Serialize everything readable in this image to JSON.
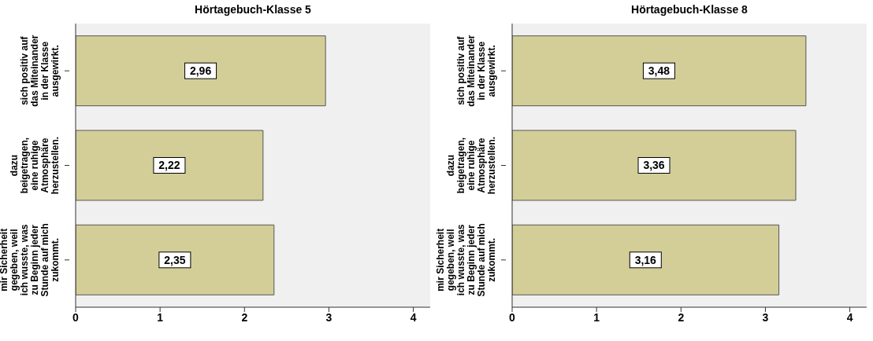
{
  "chart_data": [
    {
      "type": "bar",
      "orientation": "horizontal",
      "title": "Hörtagebuch-Klasse 5",
      "categories": [
        "sich positiv auf das Miteinander in der Klasse ausgewirkt.",
        "dazu beigetragen, eine ruhige Atmosphäre herzustellen.",
        "mir Sicherheit gegeben, weil ich wusste, was zu Beginn jeder Stunde auf mich zukommt."
      ],
      "values": [
        2.96,
        2.22,
        2.35
      ],
      "value_labels": [
        "2,96",
        "2,22",
        "2,35"
      ],
      "color": "#d3ce98",
      "xlim": [
        0,
        4.2
      ],
      "xticks": [
        0,
        1,
        2,
        3,
        4
      ]
    },
    {
      "type": "bar",
      "orientation": "horizontal",
      "title": "Hörtagebuch-Klasse 8",
      "categories": [
        "sich positiv auf das Miteinander in der Klasse ausgewirkt.",
        "dazu beigetragen, eine ruhige Atmosphäre herzustellen.",
        "mir Sicherheit gegeben, weil ich wusste, was zu Beginn jeder Stunde auf mich zukommt."
      ],
      "values": [
        3.48,
        3.36,
        3.16
      ],
      "value_labels": [
        "3,48",
        "3,36",
        "3,16"
      ],
      "color": "#d3ce98",
      "xlim": [
        0,
        4.2
      ],
      "xticks": [
        0,
        1,
        2,
        3,
        4
      ]
    }
  ]
}
